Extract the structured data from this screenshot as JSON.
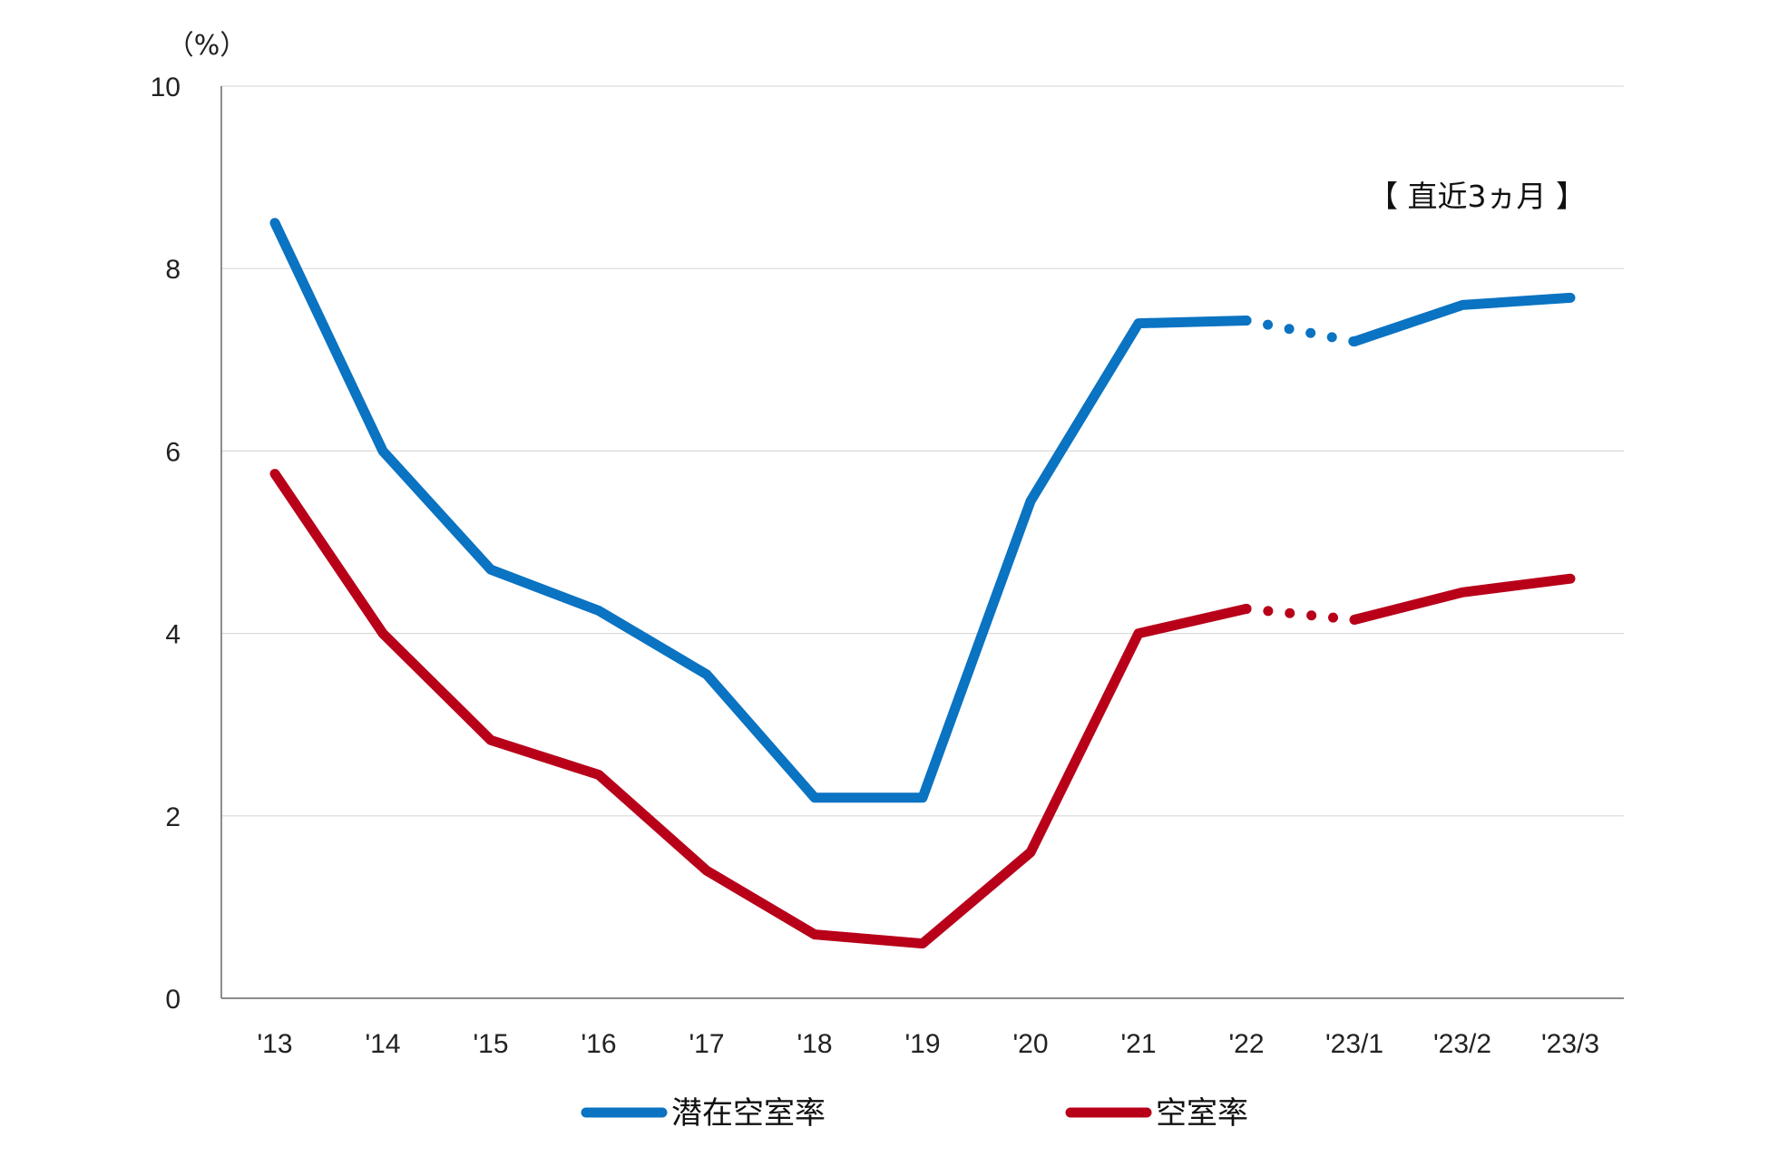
{
  "chart_data": {
    "type": "line",
    "y_unit": "（%）",
    "annotation": "【 直近3ヵ月 】",
    "categories": [
      "'13",
      "'14",
      "'15",
      "'16",
      "'17",
      "'18",
      "'19",
      "'20",
      "'21",
      "'22",
      "'23/1",
      "'23/2",
      "'23/3"
    ],
    "ylim": [
      0,
      10
    ],
    "yticks": [
      0,
      2,
      4,
      6,
      8,
      10
    ],
    "grid": true,
    "legend_position": "bottom",
    "dotted_segment_between": [
      "'22",
      "'23/1"
    ],
    "series": [
      {
        "name": "潜在空室率",
        "color": "#0a73c2",
        "values": [
          8.5,
          6.0,
          4.7,
          4.25,
          3.55,
          2.2,
          2.2,
          5.45,
          7.4,
          7.43,
          7.2,
          7.6,
          7.68
        ]
      },
      {
        "name": "空室率",
        "color": "#b80019",
        "values": [
          5.75,
          4.0,
          2.83,
          2.45,
          1.4,
          0.7,
          0.6,
          1.6,
          4.0,
          4.27,
          4.15,
          4.45,
          4.6
        ]
      }
    ]
  }
}
